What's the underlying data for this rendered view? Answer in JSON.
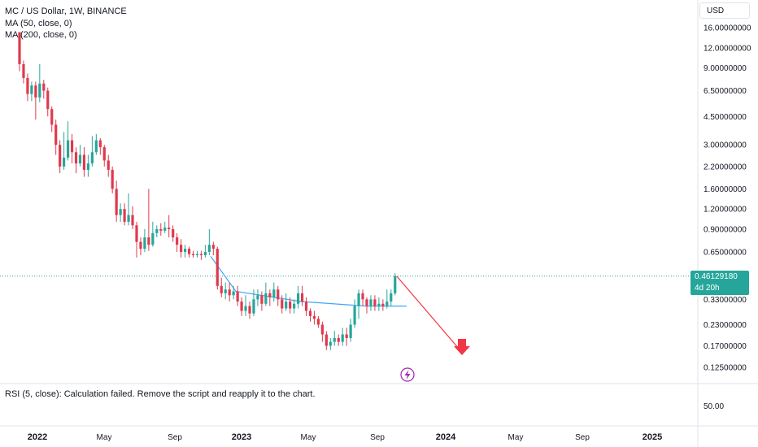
{
  "header": {
    "symbol_line": "MC / US Dollar, 1W, BINANCE",
    "ma50_label": "MA (50, close, 0)",
    "ma200_label": "MA (200, close, 0)",
    "currency": "USD"
  },
  "rsi_message": "RSI (5, close): Calculation failed. Remove the script and reapply it to the chart.",
  "rsi_axis_label": "50.00",
  "price_tag": {
    "price": "0.46129180",
    "countdown": "4d 20h"
  },
  "colors": {
    "up": "#26a69a",
    "down": "#e0394d",
    "ma": "#42a5f5",
    "arrow": "#f23645",
    "lightning": "#9c27b0"
  },
  "chart_data": {
    "type": "candlestick",
    "y_scale": "log",
    "ylim": [
      0.1,
      20
    ],
    "y_ticks": [
      "16.00000000",
      "12.00000000",
      "9.00000000",
      "6.50000000",
      "4.50000000",
      "3.00000000",
      "2.20000000",
      "1.60000000",
      "1.20000000",
      "0.90000000",
      "0.65000000",
      "0.33000000",
      "0.23000000",
      "0.17000000",
      "0.12500000"
    ],
    "x_ticks": [
      {
        "label": "2022",
        "bold": true
      },
      {
        "label": "May",
        "bold": false
      },
      {
        "label": "Sep",
        "bold": false
      },
      {
        "label": "2023",
        "bold": true
      },
      {
        "label": "May",
        "bold": false
      },
      {
        "label": "Sep",
        "bold": false
      },
      {
        "label": "2024",
        "bold": true
      },
      {
        "label": "May",
        "bold": false
      },
      {
        "label": "Sep",
        "bold": false
      },
      {
        "label": "2025",
        "bold": true
      }
    ],
    "candles": [
      [
        15,
        9.5,
        15,
        8.6
      ],
      [
        9.5,
        7.8,
        10,
        7.2
      ],
      [
        7.8,
        6.2,
        8.3,
        5.6
      ],
      [
        6.2,
        7.0,
        7.4,
        5.6
      ],
      [
        7.0,
        5.9,
        7.4,
        4.3
      ],
      [
        5.9,
        7.2,
        9.5,
        5.5
      ],
      [
        7.2,
        6.5,
        7.6,
        5.8
      ],
      [
        6.5,
        5.0,
        6.8,
        4.5
      ],
      [
        5.0,
        4.0,
        5.2,
        3.6
      ],
      [
        4.0,
        3.0,
        4.3,
        2.6
      ],
      [
        3.0,
        2.2,
        3.2,
        2.0
      ],
      [
        2.2,
        2.5,
        3.6,
        2.1
      ],
      [
        2.5,
        3.2,
        4.2,
        2.4
      ],
      [
        3.2,
        2.7,
        3.5,
        2.3
      ],
      [
        2.7,
        2.3,
        2.9,
        2.0
      ],
      [
        2.3,
        2.6,
        3.0,
        2.2
      ],
      [
        2.6,
        2.1,
        2.9,
        1.9
      ],
      [
        2.1,
        2.3,
        2.6,
        1.9
      ],
      [
        2.3,
        2.7,
        3.4,
        2.2
      ],
      [
        2.7,
        3.2,
        3.5,
        2.6
      ],
      [
        3.2,
        2.9,
        3.3,
        2.6
      ],
      [
        2.9,
        2.4,
        3.0,
        2.2
      ],
      [
        2.4,
        2.1,
        2.6,
        1.9
      ],
      [
        2.1,
        1.6,
        2.2,
        1.5
      ],
      [
        1.6,
        1.1,
        1.8,
        1.0
      ],
      [
        1.1,
        1.2,
        1.3,
        1.0
      ],
      [
        1.2,
        1.0,
        1.3,
        0.95
      ],
      [
        1.0,
        1.1,
        1.5,
        0.95
      ],
      [
        1.1,
        0.95,
        1.25,
        0.9
      ],
      [
        0.95,
        0.75,
        1.0,
        0.6
      ],
      [
        0.75,
        0.68,
        0.8,
        0.62
      ],
      [
        0.68,
        0.8,
        0.9,
        0.65
      ],
      [
        0.8,
        0.72,
        1.6,
        0.66
      ],
      [
        0.72,
        0.85,
        1.0,
        0.7
      ],
      [
        0.85,
        0.9,
        0.95,
        0.8
      ],
      [
        0.9,
        0.88,
        0.98,
        0.82
      ],
      [
        0.88,
        0.92,
        1.0,
        0.85
      ],
      [
        0.92,
        0.9,
        1.1,
        0.8
      ],
      [
        0.9,
        0.8,
        0.95,
        0.75
      ],
      [
        0.8,
        0.72,
        0.85,
        0.65
      ],
      [
        0.72,
        0.65,
        0.78,
        0.6
      ],
      [
        0.65,
        0.68,
        0.72,
        0.6
      ],
      [
        0.68,
        0.63,
        0.7,
        0.6
      ],
      [
        0.63,
        0.62,
        0.66,
        0.6
      ],
      [
        0.62,
        0.63,
        0.66,
        0.6
      ],
      [
        0.63,
        0.62,
        0.66,
        0.58
      ],
      [
        0.62,
        0.65,
        0.72,
        0.6
      ],
      [
        0.65,
        0.72,
        0.9,
        0.62
      ],
      [
        0.72,
        0.68,
        0.75,
        0.62
      ],
      [
        0.68,
        0.4,
        0.7,
        0.38
      ],
      [
        0.4,
        0.36,
        0.45,
        0.34
      ],
      [
        0.36,
        0.38,
        0.42,
        0.33
      ],
      [
        0.38,
        0.35,
        0.42,
        0.32
      ],
      [
        0.35,
        0.37,
        0.4,
        0.33
      ],
      [
        0.37,
        0.32,
        0.4,
        0.3
      ],
      [
        0.32,
        0.28,
        0.34,
        0.26
      ],
      [
        0.28,
        0.3,
        0.35,
        0.26
      ],
      [
        0.3,
        0.27,
        0.32,
        0.25
      ],
      [
        0.27,
        0.33,
        0.38,
        0.26
      ],
      [
        0.33,
        0.35,
        0.38,
        0.3
      ],
      [
        0.35,
        0.31,
        0.37,
        0.28
      ],
      [
        0.31,
        0.36,
        0.42,
        0.3
      ],
      [
        0.36,
        0.34,
        0.38,
        0.3
      ],
      [
        0.34,
        0.38,
        0.42,
        0.32
      ],
      [
        0.38,
        0.33,
        0.4,
        0.3
      ],
      [
        0.33,
        0.29,
        0.35,
        0.27
      ],
      [
        0.29,
        0.32,
        0.36,
        0.28
      ],
      [
        0.32,
        0.29,
        0.34,
        0.27
      ],
      [
        0.29,
        0.31,
        0.33,
        0.27
      ],
      [
        0.31,
        0.36,
        0.4,
        0.29
      ],
      [
        0.36,
        0.32,
        0.4,
        0.3
      ],
      [
        0.32,
        0.28,
        0.34,
        0.26
      ],
      [
        0.28,
        0.26,
        0.29,
        0.24
      ],
      [
        0.26,
        0.25,
        0.28,
        0.23
      ],
      [
        0.25,
        0.23,
        0.26,
        0.22
      ],
      [
        0.23,
        0.2,
        0.24,
        0.18
      ],
      [
        0.2,
        0.17,
        0.21,
        0.16
      ],
      [
        0.17,
        0.18,
        0.19,
        0.16
      ],
      [
        0.18,
        0.19,
        0.21,
        0.17
      ],
      [
        0.19,
        0.18,
        0.2,
        0.17
      ],
      [
        0.18,
        0.2,
        0.22,
        0.17
      ],
      [
        0.2,
        0.19,
        0.22,
        0.17
      ],
      [
        0.19,
        0.23,
        0.25,
        0.18
      ],
      [
        0.23,
        0.3,
        0.33,
        0.22
      ],
      [
        0.3,
        0.36,
        0.38,
        0.25
      ],
      [
        0.36,
        0.33,
        0.38,
        0.3
      ],
      [
        0.33,
        0.3,
        0.34,
        0.27
      ],
      [
        0.3,
        0.33,
        0.35,
        0.28
      ],
      [
        0.33,
        0.3,
        0.35,
        0.28
      ],
      [
        0.3,
        0.31,
        0.34,
        0.28
      ],
      [
        0.31,
        0.3,
        0.33,
        0.28
      ],
      [
        0.3,
        0.32,
        0.38,
        0.29
      ],
      [
        0.32,
        0.36,
        0.38,
        0.3
      ],
      [
        0.36,
        0.46,
        0.48,
        0.35
      ]
    ],
    "ma50": [
      0.61,
      0.37,
      0.32,
      0.3,
      0.3
    ],
    "projection_arrow": {
      "from": 0.46,
      "to": 0.155
    }
  }
}
